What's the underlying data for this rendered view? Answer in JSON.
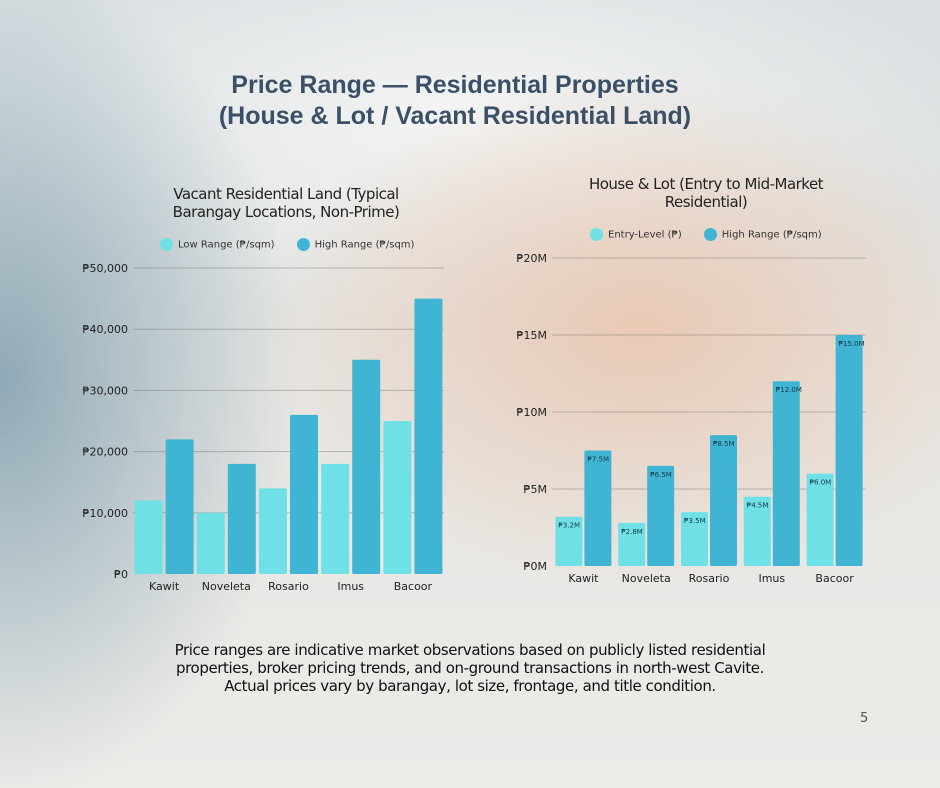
{
  "title_line1": "Price Range — Residential Properties",
  "title_line2": "(House & Lot / Vacant Residential Land)",
  "footnote": [
    "Price ranges are indicative market observations based on publicly listed residential",
    "properties, broker pricing trends, and on-ground transactions in north-west Cavite.",
    "Actual prices vary by barangay, lot size, frontage, and title condition."
  ],
  "page_number": "5",
  "colors": {
    "low": "#6fe1e6",
    "high": "#40b5d3"
  },
  "chart_data": [
    {
      "type": "bar",
      "title": "Vacant Residential Land (Typical Barangay Locations, Non-Prime)",
      "title_lines": [
        "Vacant Residential Land (Typical",
        "Barangay Locations, Non-Prime)"
      ],
      "categories": [
        "Kawit",
        "Noveleta",
        "Rosario",
        "Imus",
        "Bacoor"
      ],
      "series": [
        {
          "name": "Low Range (₱/sqm)",
          "values": [
            12000,
            10000,
            14000,
            18000,
            25000
          ]
        },
        {
          "name": "High Range (₱/sqm)",
          "values": [
            22000,
            18000,
            26000,
            35000,
            45000
          ]
        }
      ],
      "ylim": [
        0,
        50000
      ],
      "yticks": [
        "₱0",
        "₱10,000",
        "₱20,000",
        "₱30,000",
        "₱40,000",
        "₱50,000"
      ],
      "grid": true,
      "legend": "top"
    },
    {
      "type": "bar",
      "title": "House & Lot (Entry to Mid-Market Residential)",
      "title_lines": [
        "House & Lot (Entry to Mid-Market",
        "Residential)"
      ],
      "categories": [
        "Kawit",
        "Noveleta",
        "Rosario",
        "Imus",
        "Bacoor"
      ],
      "series": [
        {
          "name": "Entry-Level (₱)",
          "values": [
            3.2,
            2.8,
            3.5,
            4.5,
            6.0
          ],
          "labels": [
            "₱3.2M",
            "₱2.8M",
            "₱3.5M",
            "₱4.5M",
            "₱6.0M"
          ]
        },
        {
          "name": "High Range (₱/sqm)",
          "values": [
            7.5,
            6.5,
            8.5,
            12.0,
            15.0
          ],
          "labels": [
            "₱7.5M",
            "₱6.5M",
            "₱8.5M",
            "₱12.0M",
            "₱15.0M"
          ]
        }
      ],
      "ylim": [
        0,
        20
      ],
      "yticks": [
        "₱0M",
        "₱5M",
        "₱10M",
        "₱15M",
        "₱20M"
      ],
      "grid": true,
      "legend": "top"
    }
  ]
}
